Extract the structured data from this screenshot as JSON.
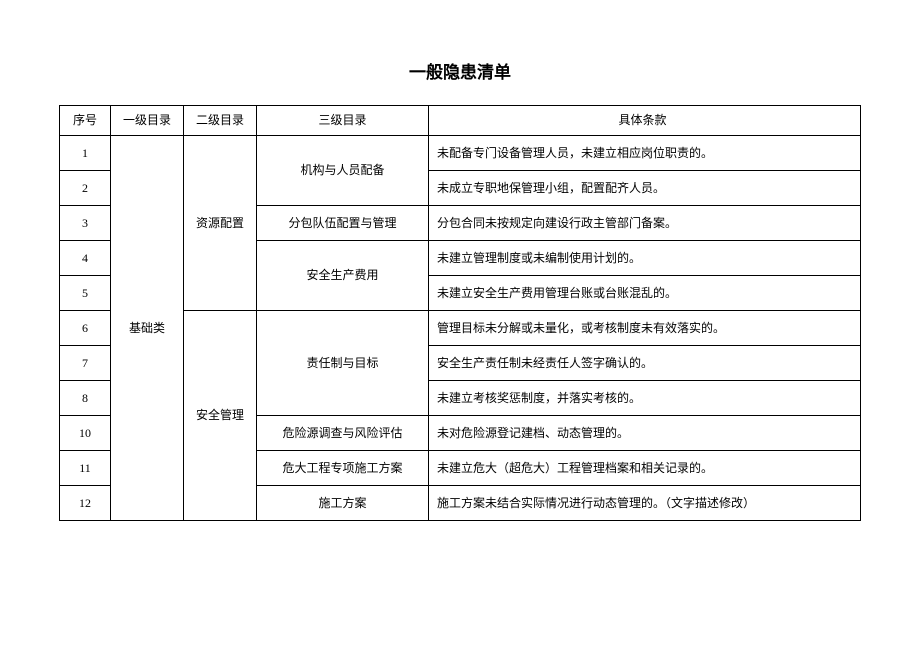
{
  "title": "一般隐患清单",
  "table": {
    "headers": {
      "seq": "序号",
      "level1": "一级目录",
      "level2": "二级目录",
      "level3": "三级目录",
      "detail": "具体条款"
    },
    "level1": "基础类",
    "level2_a": "资源配置",
    "level2_b": "安全管理",
    "level3_a": "机构与人员配备",
    "level3_b": "分包队伍配置与管理",
    "level3_c": "安全生产费用",
    "level3_d": "责任制与目标",
    "level3_e": "危险源调查与风险评估",
    "level3_f": "危大工程专项施工方案",
    "level3_g": "施工方案",
    "rows": [
      {
        "seq": "1",
        "detail": "未配备专门设备管理人员，未建立相应岗位职责的。"
      },
      {
        "seq": "2",
        "detail": "未成立专职地保管理小组，配置配齐人员。"
      },
      {
        "seq": "3",
        "detail": "分包合同未按规定向建设行政主管部门备案。"
      },
      {
        "seq": "4",
        "detail": "未建立管理制度或未编制使用计划的。"
      },
      {
        "seq": "5",
        "detail": "未建立安全生产费用管理台账或台账混乱的。"
      },
      {
        "seq": "6",
        "detail": "管理目标未分解或未量化，或考核制度未有效落实的。"
      },
      {
        "seq": "7",
        "detail": "安全生产责任制未经责任人签字确认的。"
      },
      {
        "seq": "8",
        "detail": "未建立考核奖惩制度，并落实考核的。"
      },
      {
        "seq": "10",
        "detail": "未对危险源登记建档、动态管理的。"
      },
      {
        "seq": "11",
        "detail": "未建立危大（超危大）工程管理档案和相关记录的。"
      },
      {
        "seq": "12",
        "detail": "施工方案未结合实际情况进行动态管理的。（文字描述修改）"
      }
    ]
  },
  "colors": {
    "border": "#000000",
    "background": "#ffffff",
    "text": "#000000"
  }
}
